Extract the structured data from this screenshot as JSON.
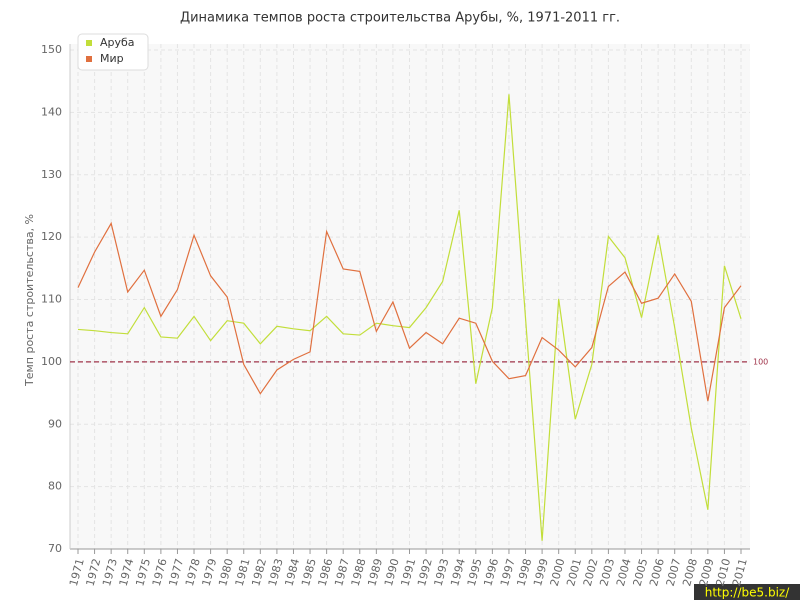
{
  "chart_data": {
    "type": "line",
    "title": "Динамика темпов роста строительства Арубы, %, 1971-2011 гг.",
    "y_label": "Темп роста строительства, %",
    "categories": [
      "1971",
      "1972",
      "1973",
      "1974",
      "1975",
      "1976",
      "1977",
      "1978",
      "1979",
      "1980",
      "1981",
      "1982",
      "1983",
      "1984",
      "1985",
      "1986",
      "1987",
      "1988",
      "1989",
      "1990",
      "1991",
      "1992",
      "1993",
      "1994",
      "1995",
      "1996",
      "1997",
      "1998",
      "1999",
      "2000",
      "2001",
      "2002",
      "2003",
      "2004",
      "2005",
      "2006",
      "2007",
      "2008",
      "2009",
      "2010",
      "2011"
    ],
    "series": [
      {
        "name": "Аруба",
        "color": "#c2de3a",
        "values": [
          105.2,
          105.0,
          104.7,
          104.5,
          108.7,
          104.0,
          103.8,
          107.3,
          103.4,
          106.6,
          106.2,
          102.9,
          105.7,
          105.3,
          105.0,
          107.3,
          104.5,
          104.3,
          106.2,
          105.8,
          105.5,
          108.7,
          112.9,
          124.3,
          96.5,
          108.7,
          142.9,
          107.0,
          71.3,
          110.1,
          90.8,
          99.6,
          120.1,
          116.7,
          107.1,
          120.3,
          105.5,
          89.4,
          76.3,
          115.4,
          106.9
        ]
      },
      {
        "name": "Мир",
        "color": "#e0703f",
        "values": [
          111.9,
          117.6,
          122.2,
          111.2,
          114.7,
          107.3,
          111.6,
          120.3,
          113.8,
          110.4,
          99.6,
          94.9,
          98.7,
          100.4,
          101.6,
          120.9,
          114.9,
          114.5,
          104.9,
          109.6,
          102.2,
          104.7,
          102.9,
          107.0,
          106.2,
          100.1,
          97.3,
          97.8,
          103.9,
          101.9,
          99.2,
          102.3,
          112.1,
          114.4,
          109.4,
          110.2,
          114.1,
          109.7,
          93.7,
          108.7,
          112.2
        ]
      }
    ],
    "ylim": [
      70,
      150
    ],
    "yticks": [
      70,
      80,
      90,
      100,
      110,
      120,
      130,
      140,
      150
    ],
    "reference_line": 100,
    "reference_color": "#a0344a",
    "grid": true,
    "legend": "top-left",
    "watermark": "http://be5.biz/"
  }
}
